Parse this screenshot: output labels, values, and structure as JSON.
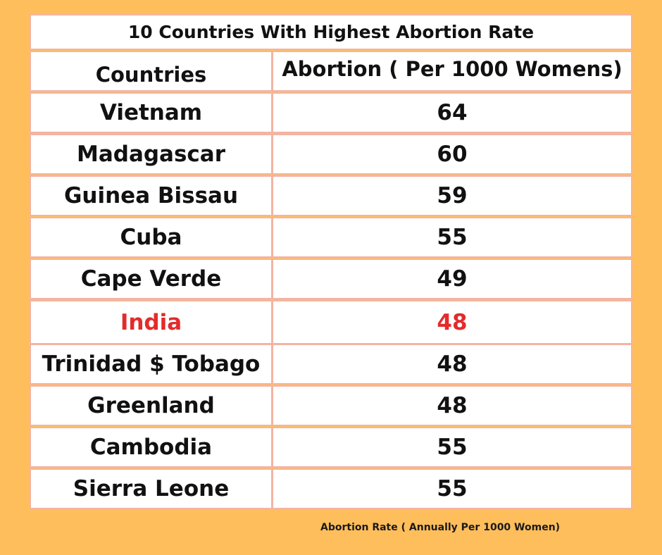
{
  "chart_data": {
    "type": "table",
    "title": "10 Countries With Highest Abortion Rate",
    "columns": [
      "Countries",
      "Abortion ( Per 1000 Womens)"
    ],
    "rows": [
      {
        "country": "Vietnam",
        "value": 64
      },
      {
        "country": "Madagascar",
        "value": 60
      },
      {
        "country": "Guinea Bissau",
        "value": 59
      },
      {
        "country": "Cuba",
        "value": 55
      },
      {
        "country": "Cape Verde",
        "value": 49
      },
      {
        "country": "India",
        "value": 48,
        "highlighted": true
      },
      {
        "country": "Trinidad $ Tobago",
        "value": 48
      },
      {
        "country": "Greenland",
        "value": 48
      },
      {
        "country": "Cambodia",
        "value": 55
      },
      {
        "country": "Sierra Leone",
        "value": 55
      }
    ],
    "footnote": "Abortion Rate ( Annually Per 1000 Women)"
  },
  "colors": {
    "background": "#FFBE5C",
    "cell_background": "#FFFFFF",
    "cell_border": "#F3B4A2",
    "text": "#111111",
    "highlight": "#E32B2B"
  }
}
